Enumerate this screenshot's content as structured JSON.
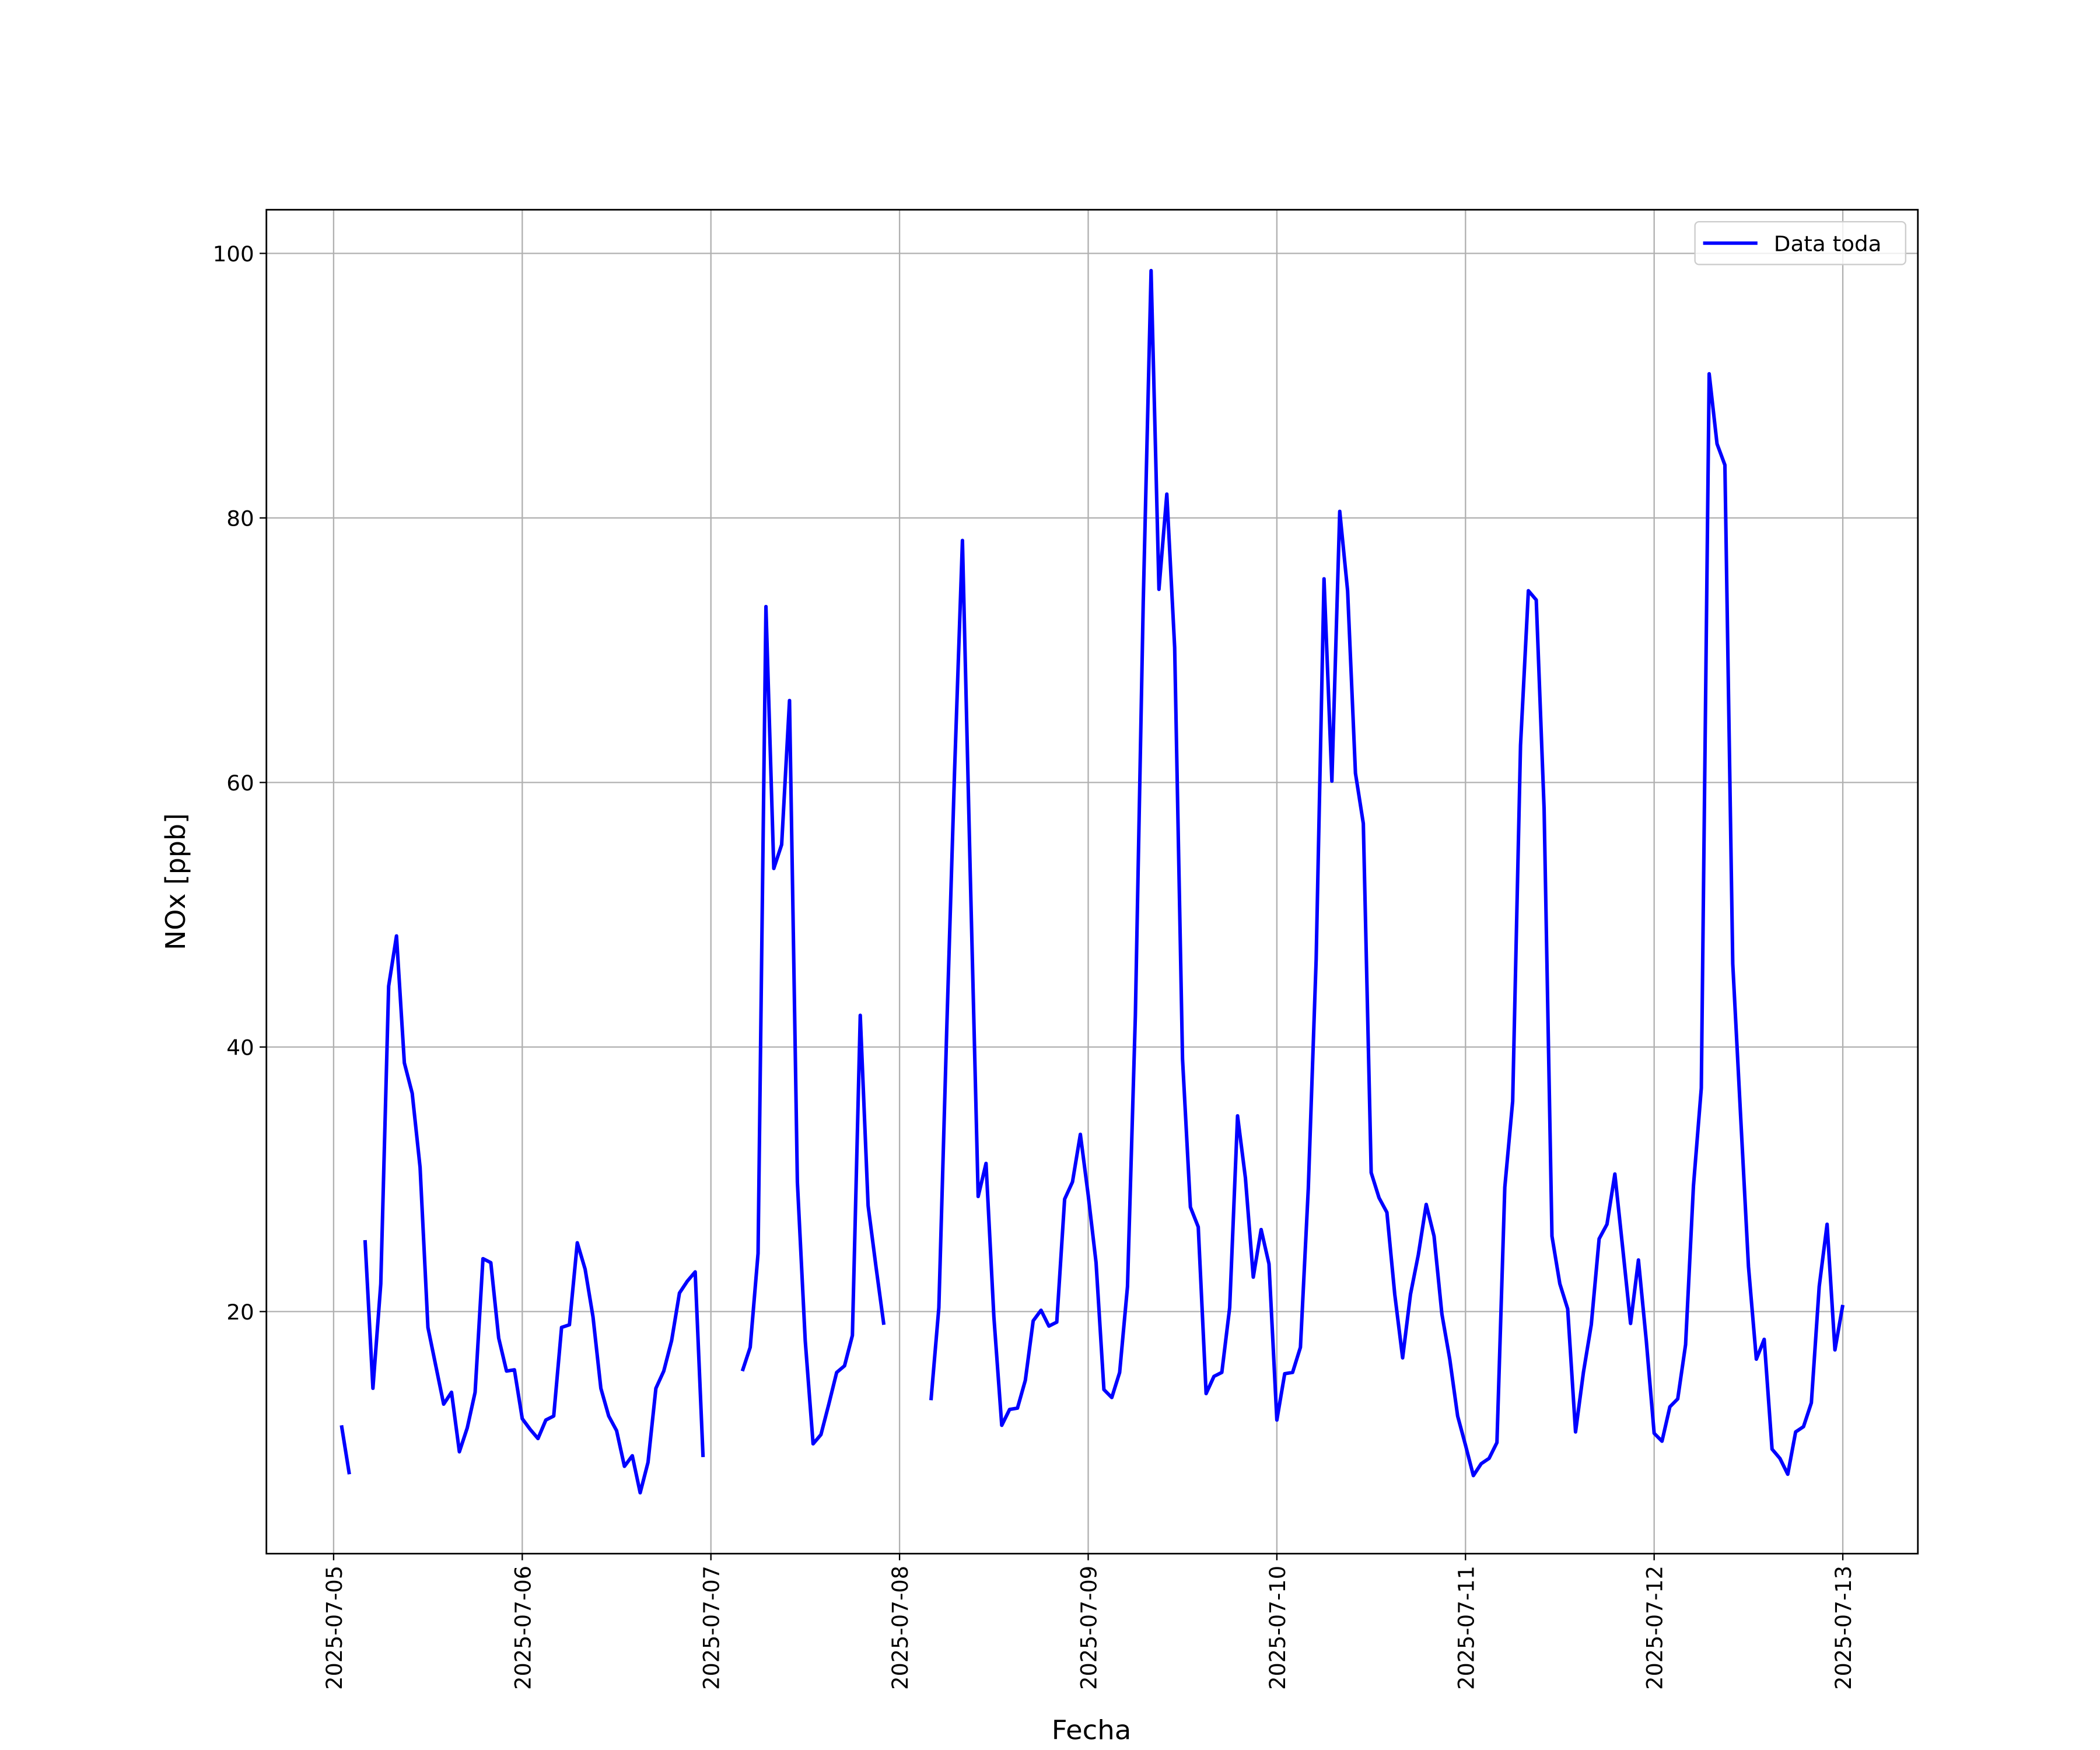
{
  "chart_data": {
    "type": "line",
    "xlabel": "Fecha",
    "ylabel": "NOx [ppb]",
    "x": [
      "2025-07-05T01:00",
      "2025-07-05T02:00",
      "2025-07-05T03:00",
      "2025-07-05T04:00",
      "2025-07-05T05:00",
      "2025-07-05T06:00",
      "2025-07-05T07:00",
      "2025-07-05T08:00",
      "2025-07-05T09:00",
      "2025-07-05T10:00",
      "2025-07-05T11:00",
      "2025-07-05T12:00",
      "2025-07-05T13:00",
      "2025-07-05T14:00",
      "2025-07-05T15:00",
      "2025-07-05T16:00",
      "2025-07-05T17:00",
      "2025-07-05T18:00",
      "2025-07-05T19:00",
      "2025-07-05T20:00",
      "2025-07-05T21:00",
      "2025-07-05T22:00",
      "2025-07-05T23:00",
      "2025-07-06T00:00",
      "2025-07-06T01:00",
      "2025-07-06T02:00",
      "2025-07-06T03:00",
      "2025-07-06T04:00",
      "2025-07-06T05:00",
      "2025-07-06T06:00",
      "2025-07-06T07:00",
      "2025-07-06T08:00",
      "2025-07-06T09:00",
      "2025-07-06T10:00",
      "2025-07-06T11:00",
      "2025-07-06T12:00",
      "2025-07-06T13:00",
      "2025-07-06T14:00",
      "2025-07-06T15:00",
      "2025-07-06T16:00",
      "2025-07-06T17:00",
      "2025-07-06T18:00",
      "2025-07-06T19:00",
      "2025-07-06T20:00",
      "2025-07-06T21:00",
      "2025-07-06T22:00",
      "2025-07-06T23:00",
      "2025-07-07T00:00",
      "2025-07-07T01:00",
      "2025-07-07T02:00",
      "2025-07-07T03:00",
      "2025-07-07T04:00",
      "2025-07-07T05:00",
      "2025-07-07T06:00",
      "2025-07-07T07:00",
      "2025-07-07T08:00",
      "2025-07-07T09:00",
      "2025-07-07T10:00",
      "2025-07-07T11:00",
      "2025-07-07T12:00",
      "2025-07-07T13:00",
      "2025-07-07T14:00",
      "2025-07-07T15:00",
      "2025-07-07T16:00",
      "2025-07-07T17:00",
      "2025-07-07T18:00",
      "2025-07-07T19:00",
      "2025-07-07T20:00",
      "2025-07-07T21:00",
      "2025-07-07T22:00",
      "2025-07-07T23:00",
      "2025-07-08T00:00",
      "2025-07-08T01:00",
      "2025-07-08T02:00",
      "2025-07-08T03:00",
      "2025-07-08T04:00",
      "2025-07-08T05:00",
      "2025-07-08T06:00",
      "2025-07-08T07:00",
      "2025-07-08T08:00",
      "2025-07-08T09:00",
      "2025-07-08T10:00",
      "2025-07-08T11:00",
      "2025-07-08T12:00",
      "2025-07-08T13:00",
      "2025-07-08T14:00",
      "2025-07-08T15:00",
      "2025-07-08T16:00",
      "2025-07-08T17:00",
      "2025-07-08T18:00",
      "2025-07-08T19:00",
      "2025-07-08T20:00",
      "2025-07-08T21:00",
      "2025-07-08T22:00",
      "2025-07-08T23:00",
      "2025-07-09T00:00",
      "2025-07-09T01:00",
      "2025-07-09T02:00",
      "2025-07-09T03:00",
      "2025-07-09T04:00",
      "2025-07-09T05:00",
      "2025-07-09T06:00",
      "2025-07-09T07:00",
      "2025-07-09T08:00",
      "2025-07-09T09:00",
      "2025-07-09T10:00",
      "2025-07-09T11:00",
      "2025-07-09T12:00",
      "2025-07-09T13:00",
      "2025-07-09T14:00",
      "2025-07-09T15:00",
      "2025-07-09T16:00",
      "2025-07-09T17:00",
      "2025-07-09T18:00",
      "2025-07-09T19:00",
      "2025-07-09T20:00",
      "2025-07-09T21:00",
      "2025-07-09T22:00",
      "2025-07-09T23:00",
      "2025-07-10T00:00",
      "2025-07-10T01:00",
      "2025-07-10T02:00",
      "2025-07-10T03:00",
      "2025-07-10T04:00",
      "2025-07-10T05:00",
      "2025-07-10T06:00",
      "2025-07-10T07:00",
      "2025-07-10T08:00",
      "2025-07-10T09:00",
      "2025-07-10T10:00",
      "2025-07-10T11:00",
      "2025-07-10T12:00",
      "2025-07-10T13:00",
      "2025-07-10T14:00",
      "2025-07-10T15:00",
      "2025-07-10T16:00",
      "2025-07-10T17:00",
      "2025-07-10T18:00",
      "2025-07-10T19:00",
      "2025-07-10T20:00",
      "2025-07-10T21:00",
      "2025-07-10T22:00",
      "2025-07-10T23:00",
      "2025-07-11T00:00",
      "2025-07-11T01:00",
      "2025-07-11T02:00",
      "2025-07-11T03:00",
      "2025-07-11T04:00",
      "2025-07-11T05:00",
      "2025-07-11T06:00",
      "2025-07-11T07:00",
      "2025-07-11T08:00",
      "2025-07-11T09:00",
      "2025-07-11T10:00",
      "2025-07-11T11:00",
      "2025-07-11T12:00",
      "2025-07-11T13:00",
      "2025-07-11T14:00",
      "2025-07-11T15:00",
      "2025-07-11T16:00",
      "2025-07-11T17:00",
      "2025-07-11T18:00",
      "2025-07-11T19:00",
      "2025-07-11T20:00",
      "2025-07-11T21:00",
      "2025-07-11T22:00",
      "2025-07-11T23:00",
      "2025-07-12T00:00",
      "2025-07-12T01:00",
      "2025-07-12T02:00",
      "2025-07-12T03:00",
      "2025-07-12T04:00",
      "2025-07-12T05:00",
      "2025-07-12T06:00",
      "2025-07-12T07:00",
      "2025-07-12T08:00",
      "2025-07-12T09:00",
      "2025-07-12T10:00",
      "2025-07-12T11:00",
      "2025-07-12T12:00",
      "2025-07-12T13:00",
      "2025-07-12T14:00",
      "2025-07-12T15:00",
      "2025-07-12T16:00",
      "2025-07-12T17:00",
      "2025-07-12T18:00",
      "2025-07-12T19:00",
      "2025-07-12T20:00",
      "2025-07-12T21:00",
      "2025-07-12T22:00",
      "2025-07-12T23:00",
      "2025-07-13T00:00"
    ],
    "series": [
      {
        "name": "Data toda",
        "color": "#0000ff",
        "values": [
          11.4,
          7.7,
          null,
          25.4,
          14.2,
          22.1,
          44.6,
          48.4,
          38.8,
          36.5,
          30.9,
          18.8,
          15.9,
          13.0,
          13.9,
          9.4,
          11.2,
          13.9,
          24.0,
          23.7,
          18.0,
          15.5,
          15.6,
          11.9,
          11.1,
          10.4,
          11.8,
          12.1,
          18.8,
          19.0,
          25.2,
          23.2,
          19.6,
          14.2,
          12.1,
          11.0,
          8.3,
          9.1,
          6.3,
          8.6,
          14.2,
          15.5,
          17.8,
          21.4,
          22.3,
          23.0,
          9.0,
          null,
          null,
          null,
          null,
          15.5,
          17.3,
          24.4,
          73.3,
          53.5,
          55.3,
          66.2,
          29.8,
          17.8,
          10.0,
          10.7,
          13.0,
          15.4,
          15.9,
          18.2,
          42.4,
          28.0,
          23.4,
          19.0,
          null,
          null,
          null,
          null,
          null,
          13.3,
          20.3,
          41.3,
          60.9,
          78.3,
          53.0,
          28.7,
          31.2,
          19.6,
          11.4,
          12.6,
          12.7,
          14.8,
          19.3,
          20.1,
          18.9,
          19.2,
          28.5,
          29.8,
          33.4,
          28.8,
          23.7,
          14.1,
          13.5,
          15.4,
          21.9,
          42.4,
          73.6,
          98.7,
          74.6,
          81.8,
          70.2,
          39.1,
          27.9,
          26.4,
          13.8,
          15.1,
          15.4,
          20.3,
          34.8,
          30.1,
          22.6,
          26.2,
          23.6,
          11.8,
          15.3,
          15.4,
          17.3,
          29.3,
          46.6,
          75.4,
          60.1,
          80.5,
          74.5,
          60.7,
          56.9,
          30.5,
          28.6,
          27.5,
          21.3,
          16.5,
          21.3,
          24.3,
          28.1,
          25.7,
          19.8,
          16.4,
          12.1,
          9.9,
          7.6,
          8.5,
          8.9,
          10.1,
          29.4,
          35.9,
          62.8,
          74.5,
          73.8,
          58.0,
          25.7,
          22.1,
          20.2,
          10.9,
          15.4,
          19.0,
          25.5,
          26.6,
          30.4,
          24.8,
          19.1,
          23.9,
          17.8,
          10.8,
          10.2,
          12.8,
          13.4,
          17.5,
          29.5,
          36.9,
          90.9,
          85.6,
          84.0,
          46.3,
          34.8,
          23.4,
          16.4,
          17.9,
          9.6,
          8.9,
          7.7,
          10.9,
          11.3,
          13.1,
          21.9,
          26.6,
          17.1,
          20.5
        ]
      }
    ],
    "xlim": [
      "2025-07-04T15:27",
      "2025-07-13T09:33"
    ],
    "xticks": [
      {
        "value": "2025-07-05T00:00",
        "label": "2025-07-05"
      },
      {
        "value": "2025-07-06T00:00",
        "label": "2025-07-06"
      },
      {
        "value": "2025-07-07T00:00",
        "label": "2025-07-07"
      },
      {
        "value": "2025-07-08T00:00",
        "label": "2025-07-08"
      },
      {
        "value": "2025-07-09T00:00",
        "label": "2025-07-09"
      },
      {
        "value": "2025-07-10T00:00",
        "label": "2025-07-10"
      },
      {
        "value": "2025-07-11T00:00",
        "label": "2025-07-11"
      },
      {
        "value": "2025-07-12T00:00",
        "label": "2025-07-12"
      },
      {
        "value": "2025-07-13T00:00",
        "label": "2025-07-13"
      }
    ],
    "ylim": [
      1.7,
      103.3
    ],
    "yticks": [
      20,
      40,
      60,
      80,
      100
    ],
    "grid": true,
    "legend_position": "upper right"
  }
}
